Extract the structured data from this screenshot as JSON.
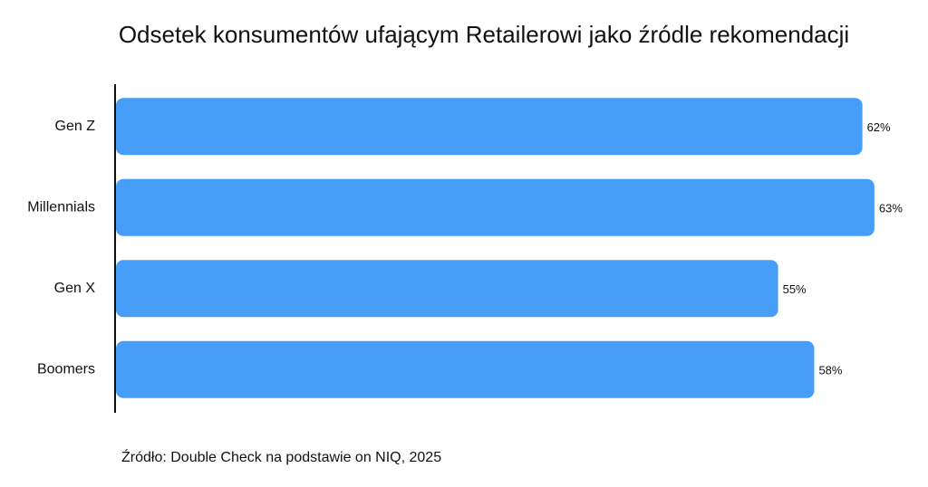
{
  "chart_data": {
    "type": "bar",
    "orientation": "horizontal",
    "title": "Odsetek konsumentów ufającym Retailerowi jako źródle rekomendacji",
    "categories": [
      "Gen Z",
      "Millennials",
      "Gen X",
      "Boomers"
    ],
    "values": [
      62,
      63,
      55,
      58
    ],
    "value_labels": [
      "62%",
      "63%",
      "55%",
      "58%"
    ],
    "color": "#479ef8",
    "xlim": [
      0,
      67
    ],
    "source": "Źródło: Double Check na podstawie on NIQ, 2025"
  }
}
